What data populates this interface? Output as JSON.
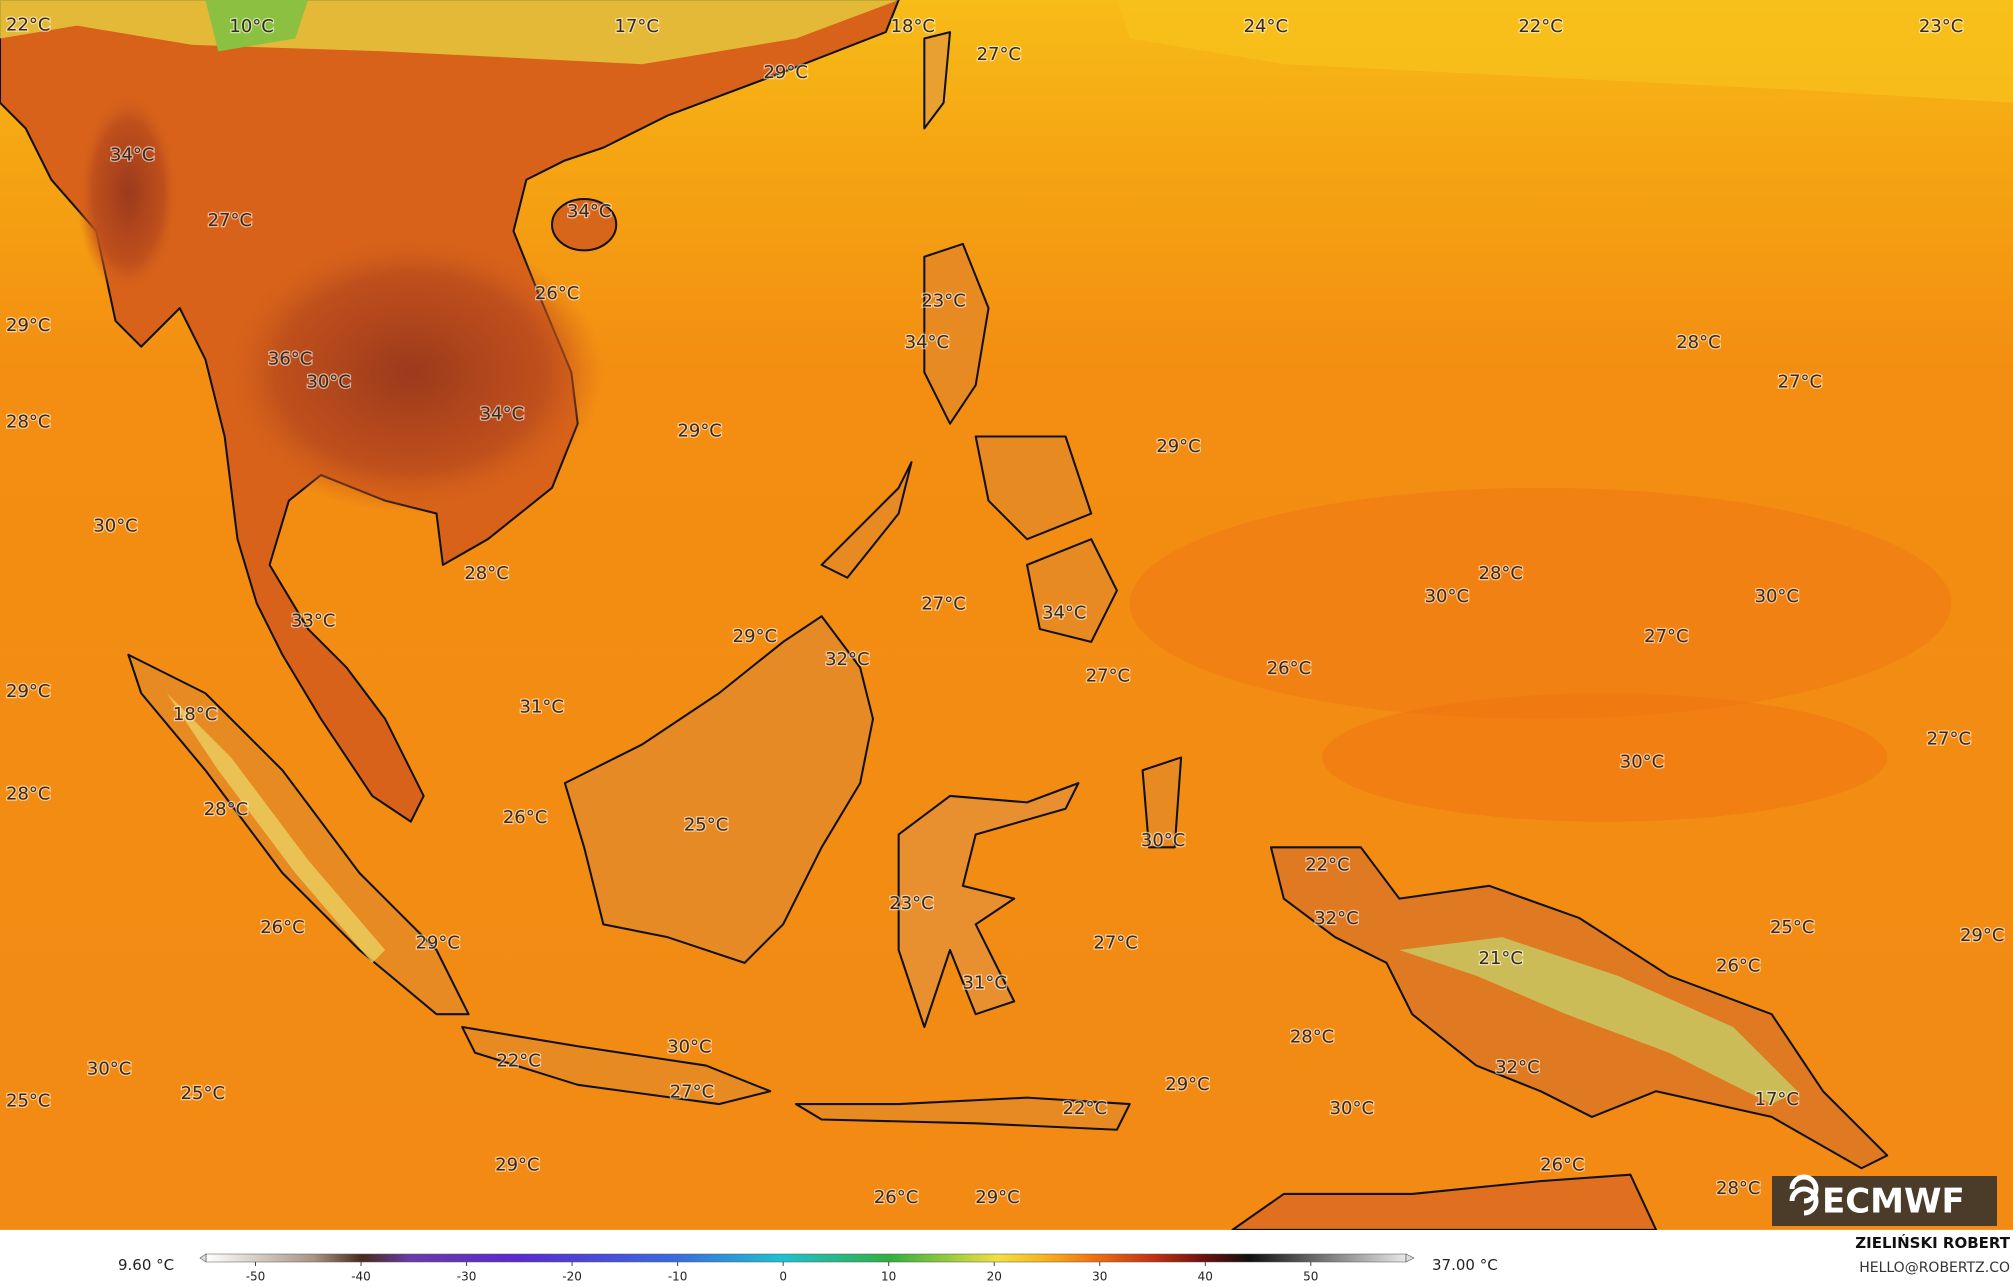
{
  "map": {
    "labels": [
      "22°C",
      "10°C",
      "17°C",
      "18°C",
      "27°C",
      "24°C",
      "22°C",
      "23°C",
      "29°C",
      "34°C",
      "34°C",
      "27°C",
      "26°C",
      "23°C",
      "29°C",
      "34°C",
      "36°C",
      "28°C",
      "30°C",
      "27°C",
      "28°C",
      "34°C",
      "29°C",
      "29°C",
      "30°C",
      "28°C",
      "28°C",
      "27°C",
      "30°C",
      "30°C",
      "33°C",
      "34°C",
      "29°C",
      "27°C",
      "32°C",
      "27°C",
      "26°C",
      "29°C",
      "18°C",
      "31°C",
      "27°C",
      "30°C",
      "28°C",
      "28°C",
      "26°C",
      "25°C",
      "30°C",
      "22°C",
      "23°C",
      "32°C",
      "25°C",
      "26°C",
      "29°C",
      "27°C",
      "21°C",
      "26°C",
      "29°C",
      "31°C",
      "28°C",
      "30°C",
      "22°C",
      "30°C",
      "32°C",
      "29°C",
      "27°C",
      "25°C",
      "25°C",
      "22°C",
      "30°C",
      "17°C",
      "29°C",
      "26°C",
      "26°C",
      "29°C",
      "28°C"
    ]
  },
  "colorbar": {
    "min_label": "9.60 °C",
    "max_label": "37.00 °C",
    "ticks": [
      -50,
      -40,
      -30,
      -20,
      -10,
      0,
      10,
      20,
      30,
      40,
      50
    ]
  },
  "credits": {
    "name": "ZIELIŃSKI ROBERT",
    "email": "HELLO@ROBERTZ.CO"
  },
  "logo": "ECMWF"
}
